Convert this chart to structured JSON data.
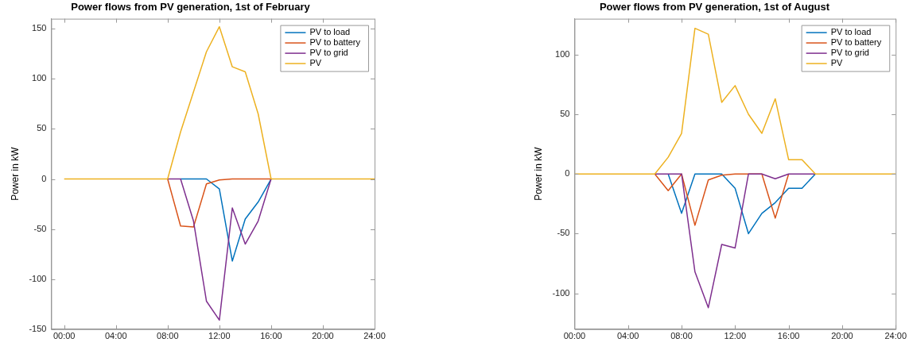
{
  "chart_data": [
    {
      "type": "line",
      "title": "Power flows from PV generation, 1st of February",
      "ylabel": "Power in kW",
      "x": [
        0,
        1,
        2,
        3,
        4,
        5,
        6,
        7,
        8,
        9,
        10,
        11,
        12,
        13,
        14,
        15,
        16,
        17,
        18,
        19,
        20,
        21,
        22,
        23,
        24
      ],
      "series": [
        {
          "name": "PV to load",
          "color": "#0072bd",
          "values": [
            null,
            null,
            null,
            null,
            null,
            null,
            null,
            null,
            null,
            0,
            0,
            0,
            -10,
            -82,
            -40,
            -23,
            0,
            null,
            null,
            null,
            null,
            null,
            null,
            null,
            null
          ]
        },
        {
          "name": "PV to battery",
          "color": "#d95319",
          "values": [
            null,
            null,
            null,
            null,
            null,
            null,
            null,
            null,
            0,
            -47,
            -48,
            -5,
            -1,
            0,
            0,
            0,
            0,
            null,
            null,
            null,
            null,
            null,
            null,
            null,
            null
          ]
        },
        {
          "name": "PV to grid",
          "color": "#7e2f8e",
          "values": [
            null,
            null,
            null,
            null,
            null,
            null,
            null,
            null,
            0,
            0,
            -42,
            -122,
            -141,
            -29,
            -65,
            -42,
            0,
            null,
            null,
            null,
            null,
            null,
            null,
            null,
            null
          ]
        },
        {
          "name": "PV",
          "color": "#edb120",
          "values": [
            0,
            0,
            0,
            0,
            0,
            0,
            0,
            0,
            0,
            47,
            87,
            127,
            152,
            112,
            107,
            65,
            0,
            0,
            0,
            0,
            0,
            0,
            0,
            0,
            0
          ]
        }
      ],
      "xlim": [
        -1,
        24
      ],
      "xticks": [
        {
          "value": 0,
          "label": "00:00"
        },
        {
          "value": 4,
          "label": "04:00"
        },
        {
          "value": 8,
          "label": "08:00"
        },
        {
          "value": 12,
          "label": "12:00"
        },
        {
          "value": 16,
          "label": "16:00"
        },
        {
          "value": 20,
          "label": "20:00"
        },
        {
          "value": 24,
          "label": "24:00"
        }
      ],
      "ylim": [
        -150,
        160
      ],
      "yticks": [
        -150,
        -100,
        -50,
        0,
        50,
        100,
        150
      ],
      "grid": false,
      "legend": "top right",
      "marker": "none",
      "line_style": "solid"
    },
    {
      "type": "line",
      "title": "Power flows from PV generation, 1st of August",
      "ylabel": "Power in kW",
      "x": [
        0,
        1,
        2,
        3,
        4,
        5,
        6,
        7,
        8,
        9,
        10,
        11,
        12,
        13,
        14,
        15,
        16,
        17,
        18,
        19,
        20,
        21,
        22,
        23,
        24
      ],
      "series": [
        {
          "name": "PV to load",
          "color": "#0072bd",
          "values": [
            null,
            null,
            null,
            null,
            null,
            null,
            null,
            0,
            -33,
            0,
            0,
            0,
            -12,
            -50,
            -33,
            -24,
            -12,
            -12,
            0,
            null,
            null,
            null,
            null,
            null,
            null
          ]
        },
        {
          "name": "PV to battery",
          "color": "#d95319",
          "values": [
            null,
            null,
            null,
            null,
            null,
            null,
            0,
            -14,
            0,
            -43,
            -5,
            -1,
            0,
            0,
            0,
            -37,
            0,
            null,
            null,
            null,
            null,
            null,
            null,
            null,
            null
          ]
        },
        {
          "name": "PV to grid",
          "color": "#7e2f8e",
          "values": [
            null,
            null,
            null,
            null,
            null,
            null,
            0,
            0,
            0,
            -82,
            -112,
            -59,
            -62,
            0,
            0,
            -4,
            0,
            0,
            0,
            null,
            null,
            null,
            null,
            null,
            null
          ]
        },
        {
          "name": "PV",
          "color": "#edb120",
          "values": [
            0,
            0,
            0,
            0,
            0,
            0,
            0,
            14,
            34,
            122,
            117,
            60,
            74,
            50,
            34,
            63,
            12,
            12,
            0,
            0,
            0,
            0,
            0,
            0,
            0
          ]
        }
      ],
      "xlim": [
        0,
        24
      ],
      "xticks": [
        {
          "value": 0,
          "label": "00:00"
        },
        {
          "value": 4,
          "label": "04:00"
        },
        {
          "value": 8,
          "label": "08:00"
        },
        {
          "value": 12,
          "label": "12:00"
        },
        {
          "value": 16,
          "label": "16:00"
        },
        {
          "value": 20,
          "label": "20:00"
        },
        {
          "value": 24,
          "label": "24:00"
        }
      ],
      "ylim": [
        -130,
        130
      ],
      "yticks": [
        -100,
        -50,
        0,
        50,
        100
      ],
      "grid": false,
      "legend": "top right",
      "marker": "none",
      "line_style": "solid"
    }
  ]
}
